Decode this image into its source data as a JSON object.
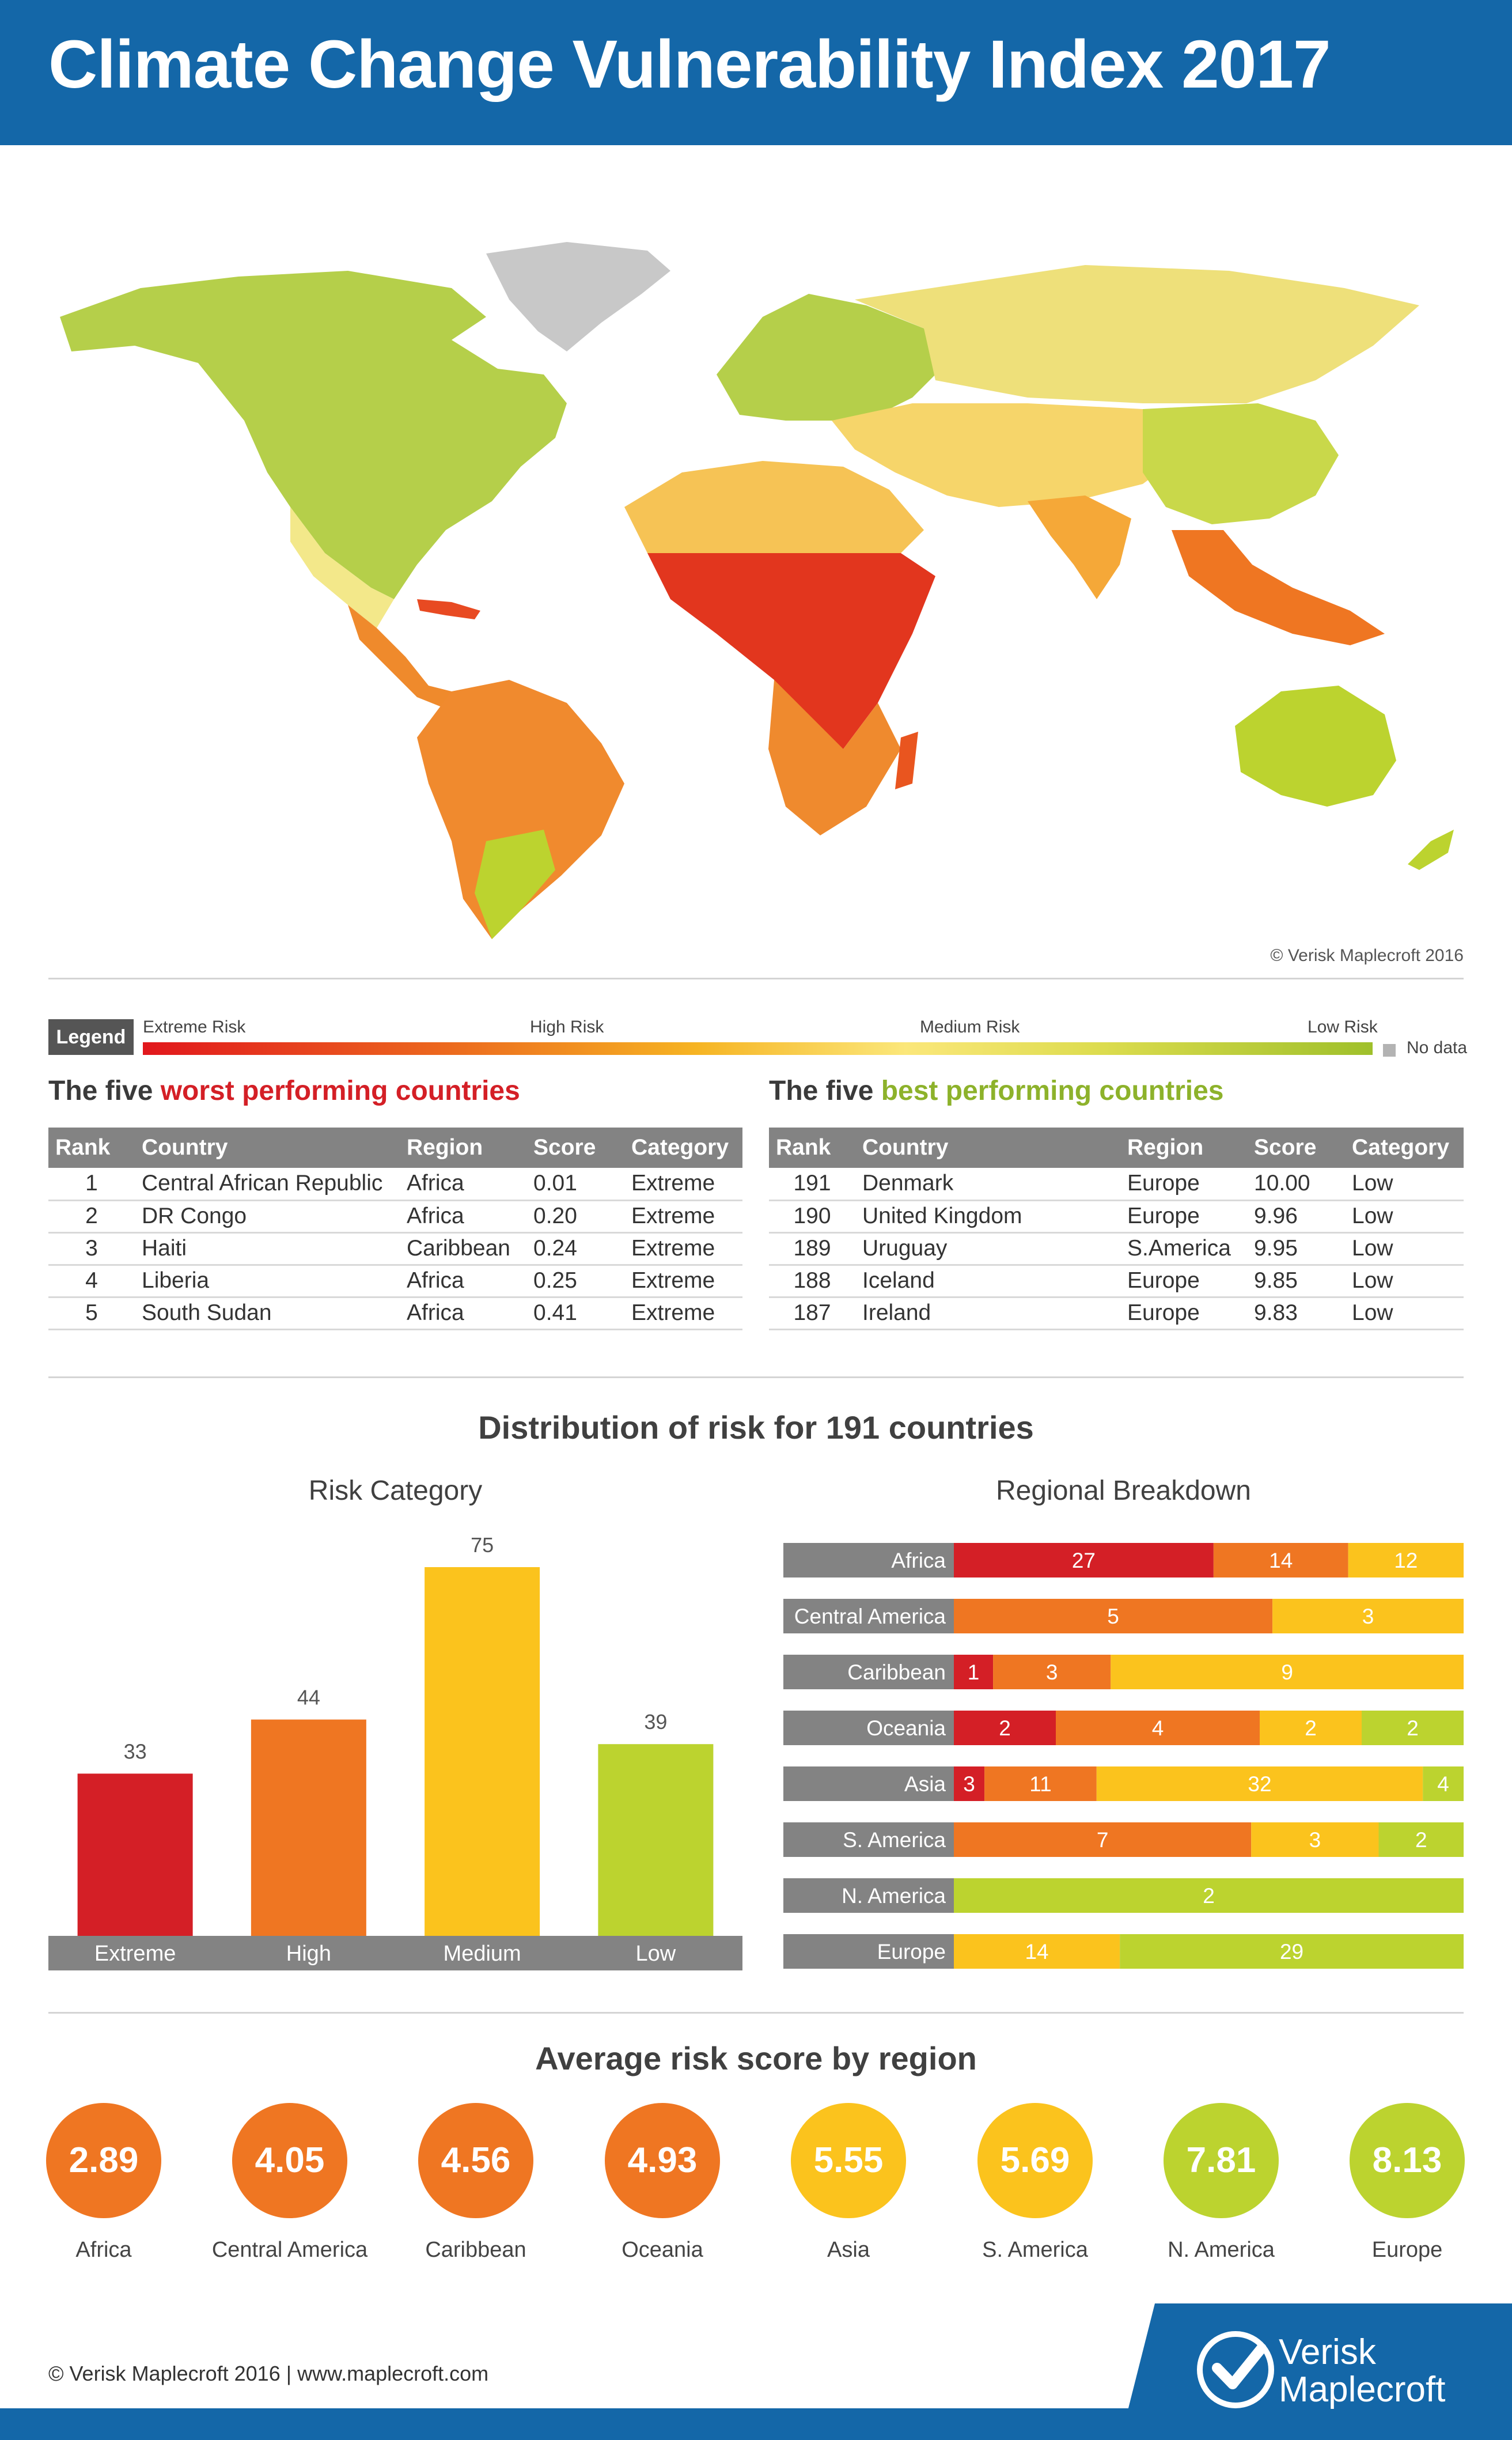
{
  "header": {
    "title": "Climate Change Vulnerability Index 2017"
  },
  "map": {
    "credit": "©  Verisk Maplecroft 2016"
  },
  "legend": {
    "tag": "Legend",
    "labels": [
      "Extreme Risk",
      "High Risk",
      "Medium Risk",
      "Low Risk"
    ],
    "no_data": "No data",
    "colors": {
      "extreme": "#e1171d",
      "high": "#ec6a1e",
      "medium": "#fbe77a",
      "low": "#9fc02b",
      "no_data": "#b3b3b3"
    }
  },
  "worst": {
    "title_prefix": "The five ",
    "title_highlight": "worst performing countries",
    "columns": [
      "Rank",
      "Country",
      "Region",
      "Score",
      "Category"
    ],
    "rows": [
      [
        "1",
        "Central African Republic",
        "Africa",
        "0.01",
        "Extreme"
      ],
      [
        "2",
        "DR Congo",
        "Africa",
        "0.20",
        "Extreme"
      ],
      [
        "3",
        "Haiti",
        "Caribbean",
        "0.24",
        "Extreme"
      ],
      [
        "4",
        "Liberia",
        "Africa",
        "0.25",
        "Extreme"
      ],
      [
        "5",
        "South Sudan",
        "Africa",
        "0.41",
        "Extreme"
      ]
    ]
  },
  "best": {
    "title_prefix": "The five ",
    "title_highlight": "best performing countries",
    "columns": [
      "Rank",
      "Country",
      "Region",
      "Score",
      "Category"
    ],
    "rows": [
      [
        "191",
        "Denmark",
        "Europe",
        "10.00",
        "Low"
      ],
      [
        "190",
        "United Kingdom",
        "Europe",
        "9.96",
        "Low"
      ],
      [
        "189",
        "Uruguay",
        "S.America",
        "9.95",
        "Low"
      ],
      [
        "188",
        "Iceland",
        "Europe",
        "9.85",
        "Low"
      ],
      [
        "187",
        "Ireland",
        "Europe",
        "9.83",
        "Low"
      ]
    ]
  },
  "distribution": {
    "title": "Distribution of risk for 191 countries"
  },
  "chart_data": [
    {
      "type": "bar",
      "title": "Risk Category",
      "categories": [
        "Extreme",
        "High",
        "Medium",
        "Low"
      ],
      "values": [
        33,
        44,
        75,
        39
      ],
      "colors": [
        "#d41f26",
        "#ef7622",
        "#fbc31d",
        "#bcd32f"
      ],
      "ylim": [
        0,
        75
      ]
    },
    {
      "type": "bar",
      "orientation": "horizontal-stacked",
      "title": "Regional Breakdown",
      "categories": [
        "Africa",
        "Central America",
        "Caribbean",
        "Oceania",
        "Asia",
        "S. America",
        "N. America",
        "Europe"
      ],
      "series": [
        {
          "name": "Extreme",
          "color": "#d41f26",
          "values": [
            27,
            0,
            1,
            2,
            3,
            0,
            0,
            0
          ]
        },
        {
          "name": "High",
          "color": "#ef7622",
          "values": [
            14,
            5,
            3,
            4,
            11,
            7,
            0,
            0
          ]
        },
        {
          "name": "Medium",
          "color": "#fbc31d",
          "values": [
            12,
            3,
            9,
            2,
            32,
            3,
            0,
            14
          ]
        },
        {
          "name": "Low",
          "color": "#bcd32f",
          "values": [
            0,
            0,
            0,
            2,
            4,
            2,
            2,
            29
          ]
        }
      ]
    }
  ],
  "averages": {
    "title": "Average risk score by region",
    "items": [
      {
        "value": "2.89",
        "label": "Africa",
        "color": "#ef7622"
      },
      {
        "value": "4.05",
        "label": "Central America",
        "color": "#ef7622"
      },
      {
        "value": "4.56",
        "label": "Caribbean",
        "color": "#ef7622"
      },
      {
        "value": "4.93",
        "label": "Oceania",
        "color": "#ef7622"
      },
      {
        "value": "5.55",
        "label": "Asia",
        "color": "#fbc31d"
      },
      {
        "value": "5.69",
        "label": "S. America",
        "color": "#fbc31d"
      },
      {
        "value": "7.81",
        "label": "N. America",
        "color": "#bcd32f"
      },
      {
        "value": "8.13",
        "label": "Europe",
        "color": "#bcd32f"
      }
    ]
  },
  "footer": {
    "text": "© Verisk Maplecroft 2016  |  www.maplecroft.com",
    "logo_line1": "Verisk",
    "logo_line2": "Maplecroft",
    "brand_color": "#1467a8"
  }
}
